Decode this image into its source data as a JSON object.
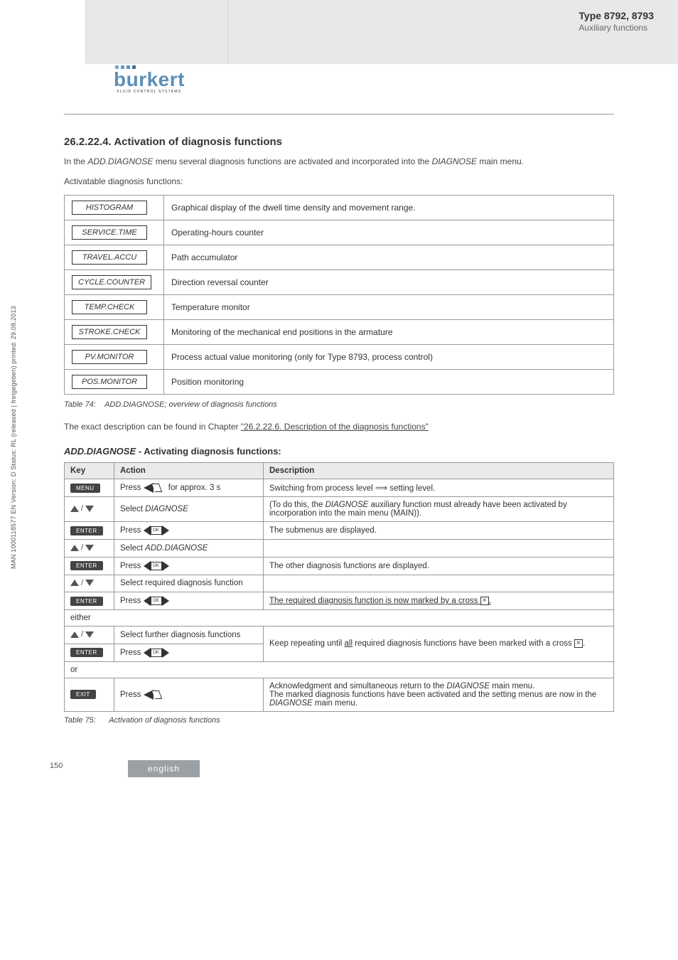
{
  "colors": {
    "grey_bg": "#e8e8e8",
    "border": "#999999",
    "text": "#333333",
    "pill_bg": "#444444",
    "logo_blue": "#5c8fb8",
    "footer_bg": "#9aa0a4"
  },
  "header": {
    "type_line1": "Type 8792, 8793",
    "type_line2": "Auxiliary functions"
  },
  "logo": {
    "name": "burkert",
    "sub": "FLUID CONTROL SYSTEMS"
  },
  "section": {
    "number_title": "26.2.22.4.  Activation of diagnosis functions",
    "intro_1a": "In the ",
    "intro_1b": "ADD.DIAGNOSE",
    "intro_1c": " menu several diagnosis functions are activated and incorporated into the ",
    "intro_1d": "DIAGNOSE",
    "intro_1e": " main menu.",
    "intro_2": "Activatable diagnosis functions:"
  },
  "func_rows": [
    {
      "label": "HISTOGRAM",
      "desc": "Graphical display of the dwell time density and movement range."
    },
    {
      "label": "SERVICE.TIME",
      "desc": "Operating-hours counter"
    },
    {
      "label": "TRAVEL.ACCU",
      "desc": "Path accumulator"
    },
    {
      "label": "CYCLE.COUNTER",
      "desc": "Direction reversal counter"
    },
    {
      "label": "TEMP.CHECK",
      "desc": "Temperature monitor"
    },
    {
      "label": "STROKE.CHECK",
      "desc": "Monitoring of the mechanical end positions in the armature"
    },
    {
      "label": "PV.MONITOR",
      "desc": "Process actual value monitoring (only for Type 8793, process control)"
    },
    {
      "label": "POS.MONITOR",
      "desc": "Position monitoring"
    }
  ],
  "table74": {
    "label": "Table 74:",
    "text": "ADD.DIAGNOSE; overview of diagnosis functions"
  },
  "exact_desc": {
    "pre": "The exact description can be found in Chapter ",
    "link": "\"26.2.22.6. Description of the diagnosis functions\""
  },
  "subhead": {
    "italic": "ADD.DIAGNOSE",
    "rest": " - Activating diagnosis functions:"
  },
  "act_headers": {
    "key": "Key",
    "action": "Action",
    "desc": "Description"
  },
  "act": {
    "menu_pill": "MENU",
    "enter_pill": "ENTER",
    "exit_pill": "EXIT",
    "press": "Press ",
    "approx": " for approx. 3 s",
    "select": "Select ",
    "select_diag": "DIAGNOSE",
    "select_add": "ADD.DIAGNOSE",
    "req_func": "Select required diagnosis function",
    "further_func": "Select further diagnosis functions",
    "either": "either",
    "or": "or",
    "d1a": "Switching from process level ",
    "d1b": " setting level.",
    "d2a": "(To do this, the ",
    "d2b": "DIAGNOSE",
    "d2c": " auxiliary function must already have been activated by incorporation into the main menu (MAIN)).",
    "d3": "The submenus are displayed.",
    "d5": "The other diagnosis functions are displayed.",
    "d7a": "The required diagnosis function is now marked by a cross ",
    "d7b": ".",
    "d8a": "Keep repeating until ",
    "d8u": "all",
    "d8b": " required diagnosis functions have been marked with a cross ",
    "d8c": ".",
    "d9a": "Acknowledgment and simultaneous return to the ",
    "d9b": "DIAGNOSE",
    "d9c": " main menu.",
    "d9d": "The marked diagnosis functions have been activated and the setting menus are now in the ",
    "d9e": "DIAGNOSE",
    "d9f": " main menu."
  },
  "table75": {
    "label": "Table 75:",
    "text": "Activation of diagnosis functions"
  },
  "side_text": "MAN 1000118577 EN Version: D Status: RL (released | freigegeben) printed: 29.08.2013",
  "page_number": "150",
  "footer": "english"
}
